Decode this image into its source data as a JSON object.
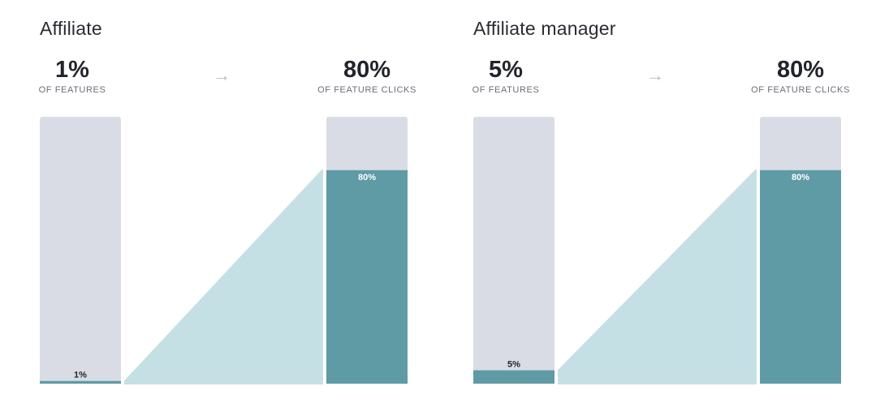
{
  "chart_data": [
    {
      "type": "bar",
      "title": "Affiliate",
      "left": {
        "value": 1,
        "label": "1%",
        "caption": "OF FEATURES"
      },
      "right": {
        "value": 80,
        "label": "80%",
        "caption": "OF FEATURE CLICKS"
      },
      "arrow_icon": "arrow-right-icon",
      "ylim": [
        0,
        100
      ]
    },
    {
      "type": "bar",
      "title": "Affiliate manager",
      "left": {
        "value": 5,
        "label": "5%",
        "caption": "OF FEATURES"
      },
      "right": {
        "value": 80,
        "label": "80%",
        "caption": "OF FEATURE CLICKS"
      },
      "arrow_icon": "arrow-right-icon",
      "ylim": [
        0,
        100
      ]
    }
  ],
  "colors": {
    "track": "#d9dce4",
    "fill": "#5e9ba5",
    "connector": "#c5e0e4",
    "text_dark": "#22242b"
  }
}
